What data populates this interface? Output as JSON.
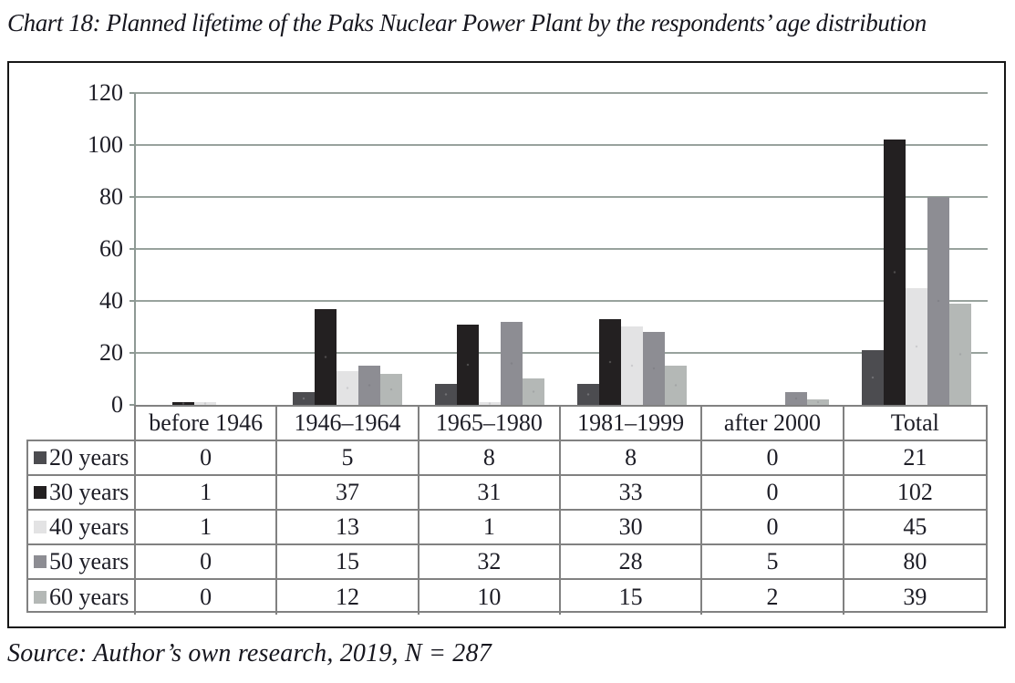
{
  "title": "Chart 18: Planned lifetime of the Paks Nuclear Power Plant by the respondents’ age distribution",
  "source": "Source: Author’s own research, 2019, N = 287",
  "colors": {
    "text": "#1d1d26",
    "gridline": "#98a29d",
    "table_border": "#818181",
    "frame_border": "#161616"
  },
  "chart_data": {
    "type": "bar",
    "title": "Chart 18: Planned lifetime of the Paks Nuclear Power Plant by the respondents’ age distribution",
    "xlabel": "",
    "ylabel": "",
    "ylim": [
      0,
      120
    ],
    "yticks": [
      0,
      20,
      40,
      60,
      80,
      100,
      120
    ],
    "grid": true,
    "legend_position": "table-left",
    "categories": [
      "before 1946",
      "1946–1964",
      "1965–1980",
      "1981–1999",
      "after 2000",
      "Total"
    ],
    "series": [
      {
        "name": "20 years",
        "color": "#4c4c50",
        "values": [
          0,
          5,
          8,
          8,
          0,
          21
        ]
      },
      {
        "name": "30 years",
        "color": "#232021",
        "values": [
          1,
          37,
          31,
          33,
          0,
          102
        ]
      },
      {
        "name": "40 years",
        "color": "#e3e3e4",
        "values": [
          1,
          13,
          1,
          30,
          0,
          45
        ]
      },
      {
        "name": "50 years",
        "color": "#8d8d93",
        "values": [
          0,
          15,
          32,
          28,
          5,
          80
        ]
      },
      {
        "name": "60 years",
        "color": "#b4b8b6",
        "values": [
          0,
          12,
          10,
          15,
          2,
          39
        ]
      }
    ]
  }
}
